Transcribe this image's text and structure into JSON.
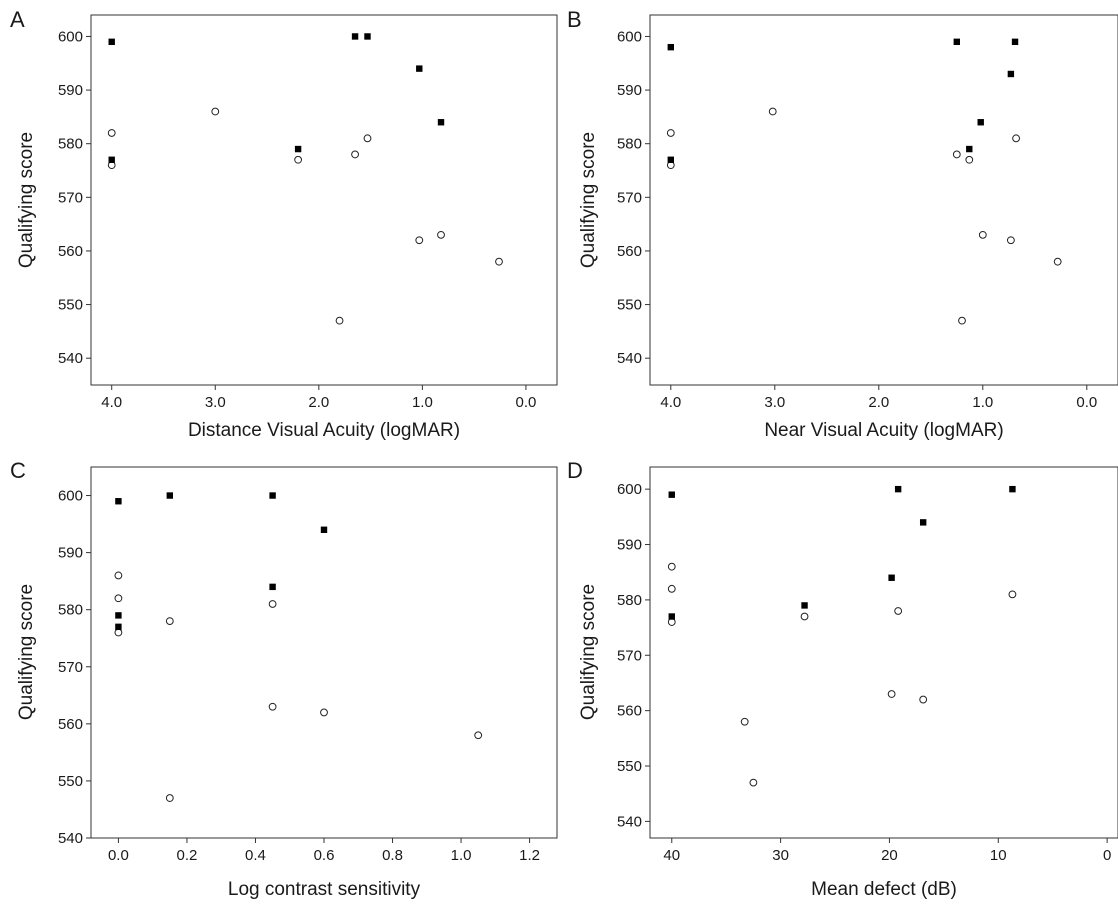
{
  "chart_data": [
    {
      "panel": "A",
      "type": "scatter",
      "title": "",
      "xlabel": "Distance Visual Acuity (logMAR)",
      "ylabel": "Qualifying score",
      "xlim": [
        4.2,
        -0.3
      ],
      "ylim": [
        535,
        604
      ],
      "xticks": [
        "4.0",
        "3.0",
        "2.0",
        "1.0",
        "0.0"
      ],
      "xtick_values": [
        4,
        3,
        2,
        1,
        0
      ],
      "yticks": [
        "540",
        "550",
        "560",
        "570",
        "580",
        "590",
        "600"
      ],
      "ytick_values": [
        540,
        550,
        560,
        570,
        580,
        590,
        600
      ],
      "x_reversed": true,
      "grid": false,
      "series": [
        {
          "marker": "filled-square",
          "points": [
            [
              4.0,
              599
            ],
            [
              4.0,
              577
            ],
            [
              2.2,
              579
            ],
            [
              1.65,
              600
            ],
            [
              1.53,
              600
            ],
            [
              1.03,
              594
            ],
            [
              0.82,
              584
            ]
          ]
        },
        {
          "marker": "open-circle",
          "points": [
            [
              4.0,
              582
            ],
            [
              4.0,
              576
            ],
            [
              3.0,
              586
            ],
            [
              2.2,
              577
            ],
            [
              1.8,
              547
            ],
            [
              1.65,
              578
            ],
            [
              1.53,
              581
            ],
            [
              1.03,
              562
            ],
            [
              0.82,
              563
            ],
            [
              0.26,
              558
            ]
          ]
        }
      ]
    },
    {
      "panel": "B",
      "type": "scatter",
      "title": "",
      "xlabel": "Near Visual Acuity (logMAR)",
      "ylabel": "Qualifying score",
      "xlim": [
        4.2,
        -0.3
      ],
      "ylim": [
        535,
        604
      ],
      "xticks": [
        "4.0",
        "3.0",
        "2.0",
        "1.0",
        "0.0"
      ],
      "xtick_values": [
        4,
        3,
        2,
        1,
        0
      ],
      "yticks": [
        "540",
        "550",
        "560",
        "570",
        "580",
        "590",
        "600"
      ],
      "ytick_values": [
        540,
        550,
        560,
        570,
        580,
        590,
        600
      ],
      "x_reversed": true,
      "grid": false,
      "series": [
        {
          "marker": "filled-square",
          "points": [
            [
              4.0,
              598
            ],
            [
              4.0,
              577
            ],
            [
              1.25,
              599
            ],
            [
              1.13,
              579
            ],
            [
              1.02,
              584
            ],
            [
              0.73,
              593
            ],
            [
              0.69,
              599
            ]
          ]
        },
        {
          "marker": "open-circle",
          "points": [
            [
              4.0,
              582
            ],
            [
              4.0,
              576
            ],
            [
              3.02,
              586
            ],
            [
              1.25,
              578
            ],
            [
              1.2,
              547
            ],
            [
              1.13,
              577
            ],
            [
              1.0,
              563
            ],
            [
              0.73,
              562
            ],
            [
              0.68,
              581
            ],
            [
              0.28,
              558
            ]
          ]
        }
      ]
    },
    {
      "panel": "C",
      "type": "scatter",
      "title": "",
      "xlabel": "Log contrast sensitivity",
      "ylabel": "Qualifying score",
      "xlim": [
        -0.08,
        1.28
      ],
      "ylim": [
        540,
        605
      ],
      "xticks": [
        "0.0",
        "0.2",
        "0.4",
        "0.6",
        "0.8",
        "1.0",
        "1.2"
      ],
      "xtick_values": [
        0,
        0.2,
        0.4,
        0.6,
        0.8,
        1.0,
        1.2
      ],
      "yticks": [
        "540",
        "550",
        "560",
        "570",
        "580",
        "590",
        "600"
      ],
      "ytick_values": [
        540,
        550,
        560,
        570,
        580,
        590,
        600
      ],
      "x_reversed": false,
      "grid": false,
      "series": [
        {
          "marker": "filled-square",
          "points": [
            [
              0.0,
              599
            ],
            [
              0.0,
              579
            ],
            [
              0.0,
              577
            ],
            [
              0.15,
              600
            ],
            [
              0.45,
              600
            ],
            [
              0.45,
              584
            ],
            [
              0.6,
              594
            ]
          ]
        },
        {
          "marker": "open-circle",
          "points": [
            [
              0.0,
              586
            ],
            [
              0.0,
              582
            ],
            [
              0.0,
              576
            ],
            [
              0.15,
              578
            ],
            [
              0.15,
              547
            ],
            [
              0.45,
              581
            ],
            [
              0.45,
              563
            ],
            [
              0.6,
              562
            ],
            [
              1.05,
              558
            ]
          ]
        }
      ]
    },
    {
      "panel": "D",
      "type": "scatter",
      "title": "",
      "xlabel": "Mean defect (dB)",
      "ylabel": "Qualifying score",
      "xlim": [
        42,
        -1
      ],
      "ylim": [
        537,
        604
      ],
      "xticks": [
        "40",
        "30",
        "20",
        "10",
        "0"
      ],
      "xtick_values": [
        40,
        30,
        20,
        10,
        0
      ],
      "yticks": [
        "540",
        "550",
        "560",
        "570",
        "580",
        "590",
        "600"
      ],
      "ytick_values": [
        540,
        550,
        560,
        570,
        580,
        590,
        600
      ],
      "x_reversed": true,
      "grid": false,
      "series": [
        {
          "marker": "filled-square",
          "points": [
            [
              40,
              599
            ],
            [
              40,
              577
            ],
            [
              27.8,
              579
            ],
            [
              19.8,
              584
            ],
            [
              19.2,
              600
            ],
            [
              16.9,
              594
            ],
            [
              8.7,
              600
            ]
          ]
        },
        {
          "marker": "open-circle",
          "points": [
            [
              40,
              586
            ],
            [
              40,
              582
            ],
            [
              40,
              576
            ],
            [
              33.3,
              558
            ],
            [
              32.5,
              547
            ],
            [
              27.8,
              577
            ],
            [
              19.8,
              563
            ],
            [
              19.2,
              578
            ],
            [
              16.9,
              562
            ],
            [
              8.7,
              581
            ]
          ]
        }
      ]
    }
  ]
}
